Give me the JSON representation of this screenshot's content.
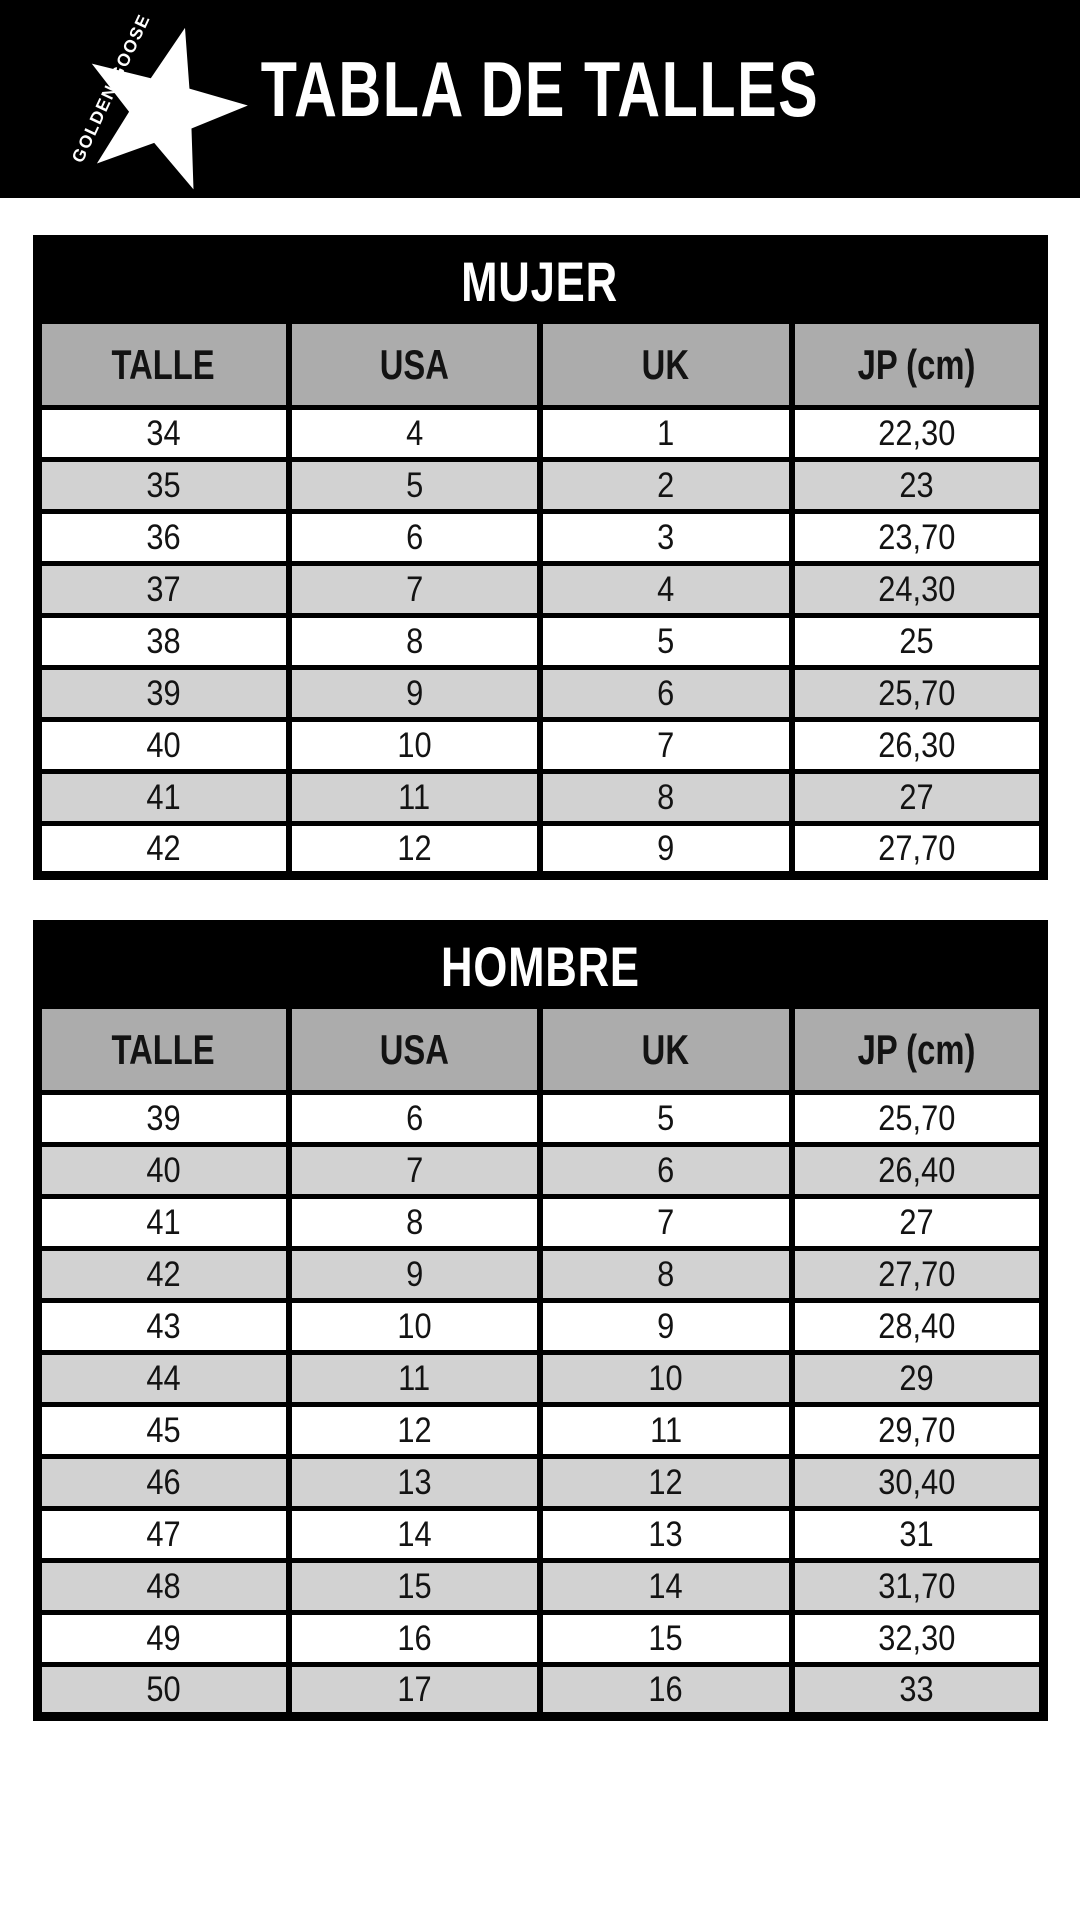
{
  "header": {
    "brand": "GOLDEN GOOSE",
    "title": "TABLA DE TALLES"
  },
  "tables": [
    {
      "title": "MUJER",
      "columns": [
        "TALLE",
        "USA",
        "UK",
        "JP (cm)"
      ],
      "rows": [
        [
          "34",
          "4",
          "1",
          "22,30"
        ],
        [
          "35",
          "5",
          "2",
          "23"
        ],
        [
          "36",
          "6",
          "3",
          "23,70"
        ],
        [
          "37",
          "7",
          "4",
          "24,30"
        ],
        [
          "38",
          "8",
          "5",
          "25"
        ],
        [
          "39",
          "9",
          "6",
          "25,70"
        ],
        [
          "40",
          "10",
          "7",
          "26,30"
        ],
        [
          "41",
          "11",
          "8",
          "27"
        ],
        [
          "42",
          "12",
          "9",
          "27,70"
        ]
      ]
    },
    {
      "title": "HOMBRE",
      "columns": [
        "TALLE",
        "USA",
        "UK",
        "JP (cm)"
      ],
      "rows": [
        [
          "39",
          "6",
          "5",
          "25,70"
        ],
        [
          "40",
          "7",
          "6",
          "26,40"
        ],
        [
          "41",
          "8",
          "7",
          "27"
        ],
        [
          "42",
          "9",
          "8",
          "27,70"
        ],
        [
          "43",
          "10",
          "9",
          "28,40"
        ],
        [
          "44",
          "11",
          "10",
          "29"
        ],
        [
          "45",
          "12",
          "11",
          "29,70"
        ],
        [
          "46",
          "13",
          "12",
          "30,40"
        ],
        [
          "47",
          "14",
          "13",
          "31"
        ],
        [
          "48",
          "15",
          "14",
          "31,70"
        ],
        [
          "49",
          "16",
          "15",
          "32,30"
        ],
        [
          "50",
          "17",
          "16",
          "33"
        ]
      ]
    }
  ],
  "colors": {
    "background": "#ffffff",
    "bar_black": "#000000",
    "header_gray": "#acacac",
    "row_alt_gray": "#d2d2d2",
    "row_white": "#ffffff",
    "text_black": "#131313",
    "text_white": "#ffffff"
  }
}
